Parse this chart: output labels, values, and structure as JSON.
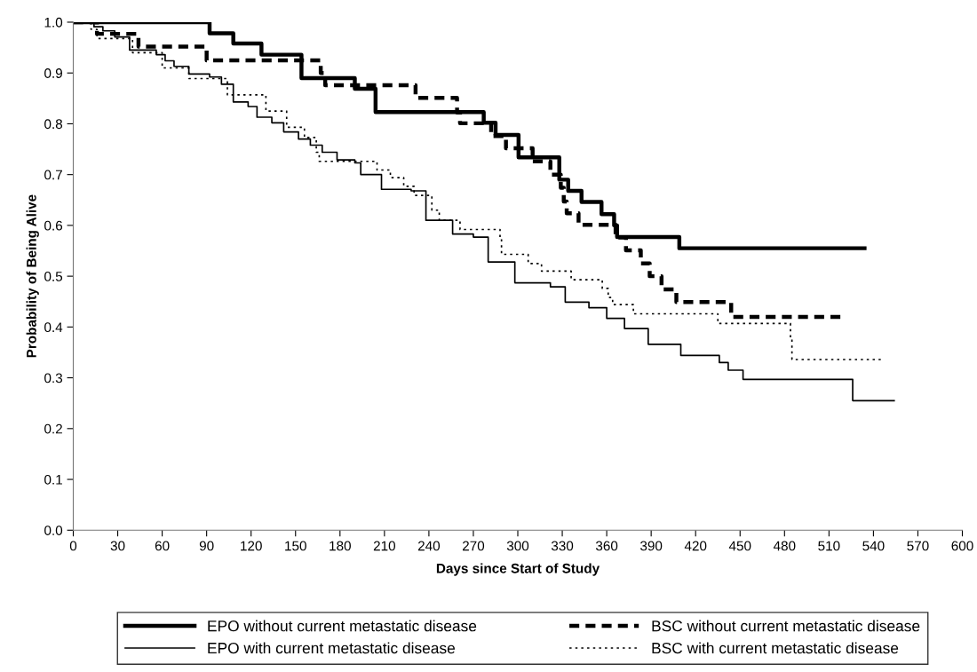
{
  "chart_data": {
    "type": "step",
    "xlabel": "Days since Start of Study",
    "ylabel": "Probability of Being Alive",
    "xlim": [
      0,
      600
    ],
    "xticks": [
      0,
      30,
      60,
      90,
      120,
      150,
      180,
      210,
      240,
      270,
      300,
      330,
      360,
      390,
      420,
      450,
      480,
      510,
      540,
      570,
      600
    ],
    "ylim": [
      0,
      1.0
    ],
    "yticks": [
      {
        "value": 0,
        "label": "0.0"
      },
      0.1,
      0.2,
      0.3,
      0.4,
      0.5,
      0.6,
      0.7,
      0.8,
      0.9,
      {
        "value": 1.0,
        "label": "1.0"
      }
    ],
    "grid": false,
    "legend": "bottom",
    "series": [
      {
        "name": "EPO without current metastatic disease",
        "color": "#000000",
        "line_style": "solid",
        "x": [
          0,
          92,
          108,
          127,
          154,
          190,
          204,
          277,
          285,
          300.5,
          328,
          334,
          343,
          356.5,
          365,
          367,
          409,
          534
        ],
        "values": [
          1.0,
          0.978,
          0.958,
          0.936,
          0.89,
          0.869,
          0.823,
          0.802,
          0.778,
          0.734,
          0.69,
          0.668,
          0.646,
          0.622,
          0.6,
          0.577,
          0.555,
          0.555
        ]
      },
      {
        "name": "BSC without current metastatic disease",
        "color": "#000000",
        "line_style": "dashed",
        "x": [
          0,
          16,
          44,
          90,
          167,
          170,
          231,
          259,
          261,
          282,
          292,
          310,
          322,
          329,
          331,
          333,
          341,
          366,
          373,
          383,
          389,
          397,
          407,
          444,
          519
        ],
        "values": [
          1.0,
          0.977,
          0.952,
          0.925,
          0.9,
          0.876,
          0.851,
          0.822,
          0.801,
          0.776,
          0.752,
          0.726,
          0.7,
          0.674,
          0.647,
          0.624,
          0.601,
          0.576,
          0.551,
          0.525,
          0.5,
          0.474,
          0.449,
          0.42,
          0.42
        ]
      },
      {
        "name": "EPO with current metastatic disease",
        "color": "#000000",
        "line_style": "solid",
        "x": [
          0,
          14,
          20,
          28,
          38,
          56,
          62,
          68,
          78,
          92,
          100,
          108,
          118,
          124,
          134,
          142,
          152,
          160,
          168,
          178,
          190,
          194,
          208,
          228,
          238,
          256,
          270,
          280,
          298,
          322,
          332,
          348,
          360,
          372,
          388,
          410,
          436,
          442,
          452,
          526,
          554
        ],
        "values": [
          1.0,
          0.991,
          0.983,
          0.971,
          0.945,
          0.936,
          0.924,
          0.913,
          0.898,
          0.892,
          0.878,
          0.843,
          0.834,
          0.813,
          0.802,
          0.784,
          0.77,
          0.758,
          0.744,
          0.729,
          0.723,
          0.7,
          0.671,
          0.668,
          0.61,
          0.583,
          0.577,
          0.528,
          0.487,
          0.479,
          0.449,
          0.438,
          0.417,
          0.397,
          0.366,
          0.344,
          0.33,
          0.315,
          0.297,
          0.255,
          0.255
        ]
      },
      {
        "name": "BSC with current metastatic disease",
        "color": "#000000",
        "line_style": "dotted",
        "x": [
          0,
          12,
          16,
          40,
          60,
          78,
          104,
          110,
          130,
          144,
          156,
          164,
          166,
          205,
          214,
          223,
          230,
          242,
          247,
          261,
          288,
          289,
          307,
          316,
          336,
          357,
          361,
          364,
          378,
          435,
          484,
          485,
          546
        ],
        "values": [
          1.0,
          0.986,
          0.968,
          0.94,
          0.91,
          0.889,
          0.857,
          0.857,
          0.825,
          0.793,
          0.773,
          0.744,
          0.726,
          0.709,
          0.694,
          0.677,
          0.659,
          0.63,
          0.61,
          0.592,
          0.575,
          0.543,
          0.525,
          0.51,
          0.493,
          0.476,
          0.458,
          0.444,
          0.426,
          0.407,
          0.376,
          0.336,
          0.336
        ]
      }
    ]
  }
}
